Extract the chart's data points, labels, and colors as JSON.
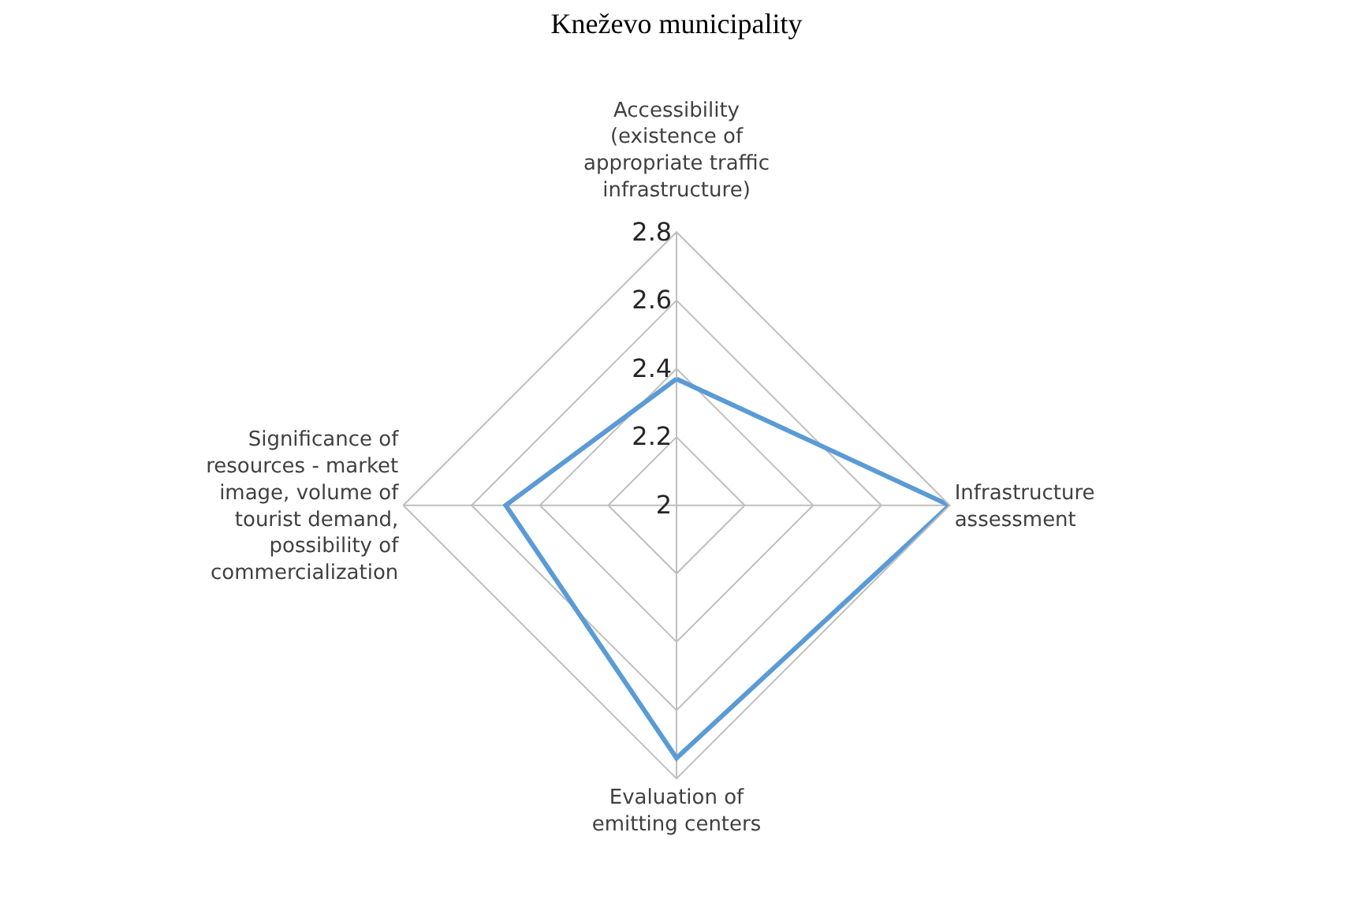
{
  "chart_data": {
    "type": "radar",
    "title": "Kneževo municipality",
    "categories": [
      "Accessibility\n(existence of\nappropriate traffic\ninfrastructure)",
      "Infrastructure\nassessment",
      "Evaluation of\nemitting centers",
      "Significance of\nresources - market\nimage, volume of\ntourist demand,\npossibility of\ncommercialization"
    ],
    "series": [
      {
        "color": "#5b9bd5",
        "values": [
          2.37,
          2.8,
          2.74,
          2.5
        ]
      }
    ],
    "ylim": [
      2,
      2.8
    ],
    "yticks": [
      2,
      2.2,
      2.4,
      2.6,
      2.8
    ],
    "grid": true,
    "marker": "none"
  }
}
